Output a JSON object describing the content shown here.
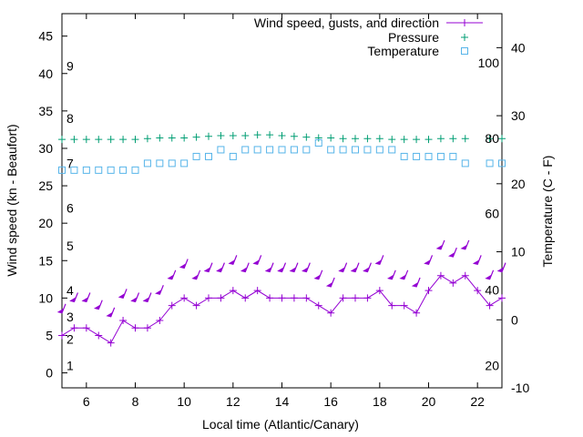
{
  "chart_data": {
    "type": "line",
    "xlabel": "Local time (Atlantic/Canary)",
    "ylabel_left": "Wind speed (kn - Beaufort)",
    "ylabel_right": "Temperature (C - F)",
    "xlim": [
      5,
      23
    ],
    "ylim_left": [
      -2,
      48
    ],
    "ylim_right": [
      -10,
      45
    ],
    "x_ticks": [
      6,
      8,
      10,
      12,
      14,
      16,
      18,
      20,
      22
    ],
    "y_ticks_left": [
      0,
      5,
      10,
      15,
      20,
      25,
      30,
      35,
      40,
      45
    ],
    "y_ticks_right": [
      -10,
      0,
      10,
      20,
      30,
      40
    ],
    "beaufort_labels": [
      {
        "label": "1",
        "y": 1
      },
      {
        "label": "2",
        "y": 4.5
      },
      {
        "label": "3",
        "y": 7.5
      },
      {
        "label": "4",
        "y": 11
      },
      {
        "label": "5",
        "y": 17
      },
      {
        "label": "6",
        "y": 22
      },
      {
        "label": "7",
        "y": 28
      },
      {
        "label": "8",
        "y": 34
      },
      {
        "label": "9",
        "y": 41
      }
    ],
    "fahrenheit_labels": [
      {
        "label": "20",
        "temp_c": -6.7
      },
      {
        "label": "40",
        "temp_c": 4.4
      },
      {
        "label": "60",
        "temp_c": 15.6
      },
      {
        "label": "80",
        "temp_c": 26.7
      },
      {
        "label": "100",
        "temp_c": 37.8
      }
    ],
    "legend_position": "top-right",
    "grid": false,
    "series": [
      {
        "name": "Wind speed, gusts, and direction",
        "color": "#9400d3",
        "x": [
          5,
          5.5,
          6,
          6.5,
          7,
          7.5,
          8,
          8.5,
          9,
          9.5,
          10,
          10.5,
          11,
          11.5,
          12,
          12.5,
          13,
          13.5,
          14,
          14.5,
          15,
          15.5,
          16,
          16.5,
          17,
          17.5,
          18,
          18.5,
          19,
          19.5,
          20,
          20.5,
          21,
          21.5,
          22,
          22.5,
          23
        ],
        "values": [
          5,
          6,
          6,
          5,
          4,
          7,
          6,
          6,
          7,
          9,
          10,
          9,
          10,
          10,
          11,
          10,
          11,
          10,
          10,
          10,
          10,
          9,
          8,
          10,
          10,
          10,
          11,
          9,
          9,
          8,
          11,
          13,
          12,
          13,
          11,
          9,
          10
        ],
        "gusts": [
          8,
          9.5,
          9.5,
          8.5,
          7.5,
          10,
          9.5,
          9.5,
          10.5,
          12.5,
          14,
          12.5,
          13.5,
          13.5,
          14.5,
          13.5,
          14.5,
          13.5,
          13.5,
          13.5,
          13.5,
          12.5,
          11.5,
          13.5,
          13.5,
          13.5,
          14.5,
          12.5,
          12.5,
          11.5,
          14.5,
          16.5,
          15.5,
          16.5,
          14.5,
          12.5,
          13.5
        ]
      },
      {
        "name": "Pressure",
        "color": "#009e73",
        "x": [
          5,
          5.5,
          6,
          6.5,
          7,
          7.5,
          8,
          8.5,
          9,
          9.5,
          10,
          10.5,
          11,
          11.5,
          12,
          12.5,
          13,
          13.5,
          14,
          14.5,
          15,
          15.5,
          16,
          16.5,
          17,
          17.5,
          18,
          18.5,
          19,
          19.5,
          20,
          20.5,
          21,
          21.5,
          22.5,
          23
        ],
        "values_wind_axis": [
          31.2,
          31.2,
          31.2,
          31.2,
          31.2,
          31.2,
          31.2,
          31.3,
          31.4,
          31.4,
          31.4,
          31.5,
          31.6,
          31.7,
          31.7,
          31.7,
          31.8,
          31.8,
          31.7,
          31.6,
          31.5,
          31.4,
          31.4,
          31.3,
          31.3,
          31.3,
          31.3,
          31.2,
          31.2,
          31.2,
          31.2,
          31.3,
          31.3,
          31.3,
          31.3,
          31.3
        ]
      },
      {
        "name": "Temperature",
        "color": "#56b4e9",
        "x": [
          5,
          5.5,
          6,
          6.5,
          7,
          7.5,
          8,
          8.5,
          9,
          9.5,
          10,
          10.5,
          11,
          11.5,
          12,
          12.5,
          13,
          13.5,
          14,
          14.5,
          15,
          15.5,
          16,
          16.5,
          17,
          17.5,
          18,
          18.5,
          19,
          19.5,
          20,
          20.5,
          21,
          21.5,
          22.5,
          23
        ],
        "values": [
          22,
          22,
          22,
          22,
          22,
          22,
          22,
          23,
          23,
          23,
          23,
          24,
          24,
          25,
          24,
          25,
          25,
          25,
          25,
          25,
          25,
          26,
          25,
          25,
          25,
          25,
          25,
          25,
          24,
          24,
          24,
          24,
          24,
          23,
          23,
          23
        ]
      }
    ]
  }
}
